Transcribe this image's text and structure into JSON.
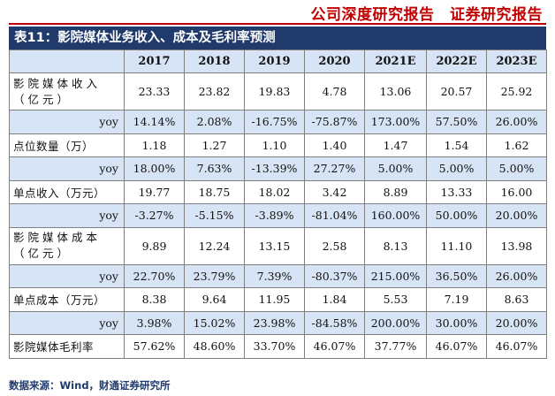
{
  "header": {
    "text": "公司深度研究报告　证券研究报告"
  },
  "title": "表11：影院媒体业务收入、成本及毛利率预测",
  "table": {
    "columns": [
      "",
      "2017",
      "2018",
      "2019",
      "2020",
      "2021E",
      "2022E",
      "2023E"
    ],
    "rows": [
      {
        "label": "影院媒体收入（亿元）",
        "values": [
          "23.33",
          "23.82",
          "19.83",
          "4.78",
          "13.06",
          "20.57",
          "25.92"
        ]
      },
      {
        "label": "yoy",
        "values": [
          "14.14%",
          "2.08%",
          "-16.75%",
          "-75.87%",
          "173.00%",
          "57.50%",
          "26.00%"
        ]
      },
      {
        "label": "点位数量（万）",
        "values": [
          "1.18",
          "1.27",
          "1.10",
          "1.40",
          "1.47",
          "1.54",
          "1.62"
        ]
      },
      {
        "label": "yoy",
        "values": [
          "18.00%",
          "7.63%",
          "-13.39%",
          "27.27%",
          "5.00%",
          "5.00%",
          "5.00%"
        ]
      },
      {
        "label": "单点收入（万元）",
        "values": [
          "19.77",
          "18.75",
          "18.02",
          "3.42",
          "8.89",
          "13.33",
          "16.00"
        ]
      },
      {
        "label": "yoy",
        "values": [
          "-3.27%",
          "-5.15%",
          "-3.89%",
          "-81.04%",
          "160.00%",
          "50.00%",
          "20.00%"
        ]
      },
      {
        "label": "影院媒体成本（亿元）",
        "values": [
          "9.89",
          "12.24",
          "13.15",
          "2.58",
          "8.13",
          "11.10",
          "13.98"
        ]
      },
      {
        "label": "yoy",
        "values": [
          "22.70%",
          "23.79%",
          "7.39%",
          "-80.37%",
          "215.00%",
          "36.50%",
          "26.00%"
        ]
      },
      {
        "label": "单点成本（万元）",
        "values": [
          "8.38",
          "9.64",
          "11.95",
          "1.84",
          "5.53",
          "7.19",
          "8.63"
        ]
      },
      {
        "label": "yoy",
        "values": [
          "3.98%",
          "15.02%",
          "23.98%",
          "-84.58%",
          "200.00%",
          "30.00%",
          "20.00%"
        ]
      },
      {
        "label": "影院媒体毛利率",
        "values": [
          "57.62%",
          "48.60%",
          "33.70%",
          "46.07%",
          "37.77%",
          "46.07%",
          "46.07%"
        ]
      }
    ]
  },
  "source": "数据来源：Wind，财通证券研究所",
  "colors": {
    "header_red": "#c00000",
    "title_bar": "#1f3a6b",
    "shade": "#d6e4f5"
  }
}
